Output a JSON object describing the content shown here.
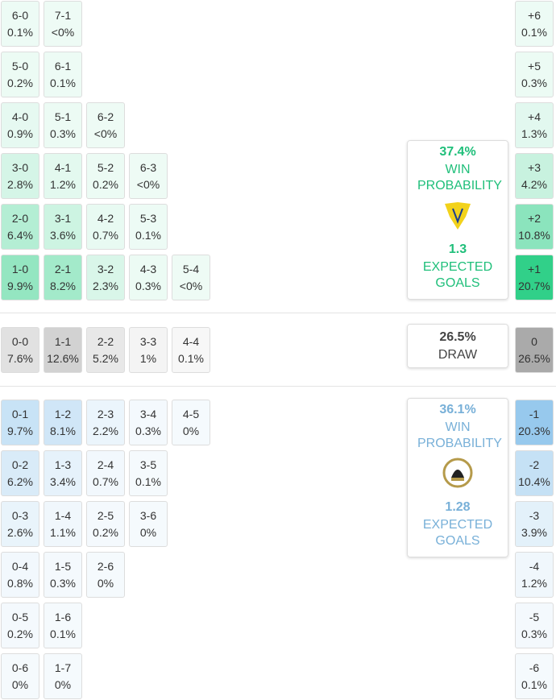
{
  "home": {
    "color": "#2ecf87",
    "text_color": "#1fbf7a",
    "rows": [
      [
        {
          "score": "6-0",
          "pct": "0.1%"
        },
        {
          "score": "7-1",
          "pct": "<0%"
        }
      ],
      [
        {
          "score": "5-0",
          "pct": "0.2%"
        },
        {
          "score": "6-1",
          "pct": "0.1%"
        }
      ],
      [
        {
          "score": "4-0",
          "pct": "0.9%"
        },
        {
          "score": "5-1",
          "pct": "0.3%"
        },
        {
          "score": "6-2",
          "pct": "<0%"
        }
      ],
      [
        {
          "score": "3-0",
          "pct": "2.8%"
        },
        {
          "score": "4-1",
          "pct": "1.2%"
        },
        {
          "score": "5-2",
          "pct": "0.2%"
        },
        {
          "score": "6-3",
          "pct": "<0%"
        }
      ],
      [
        {
          "score": "2-0",
          "pct": "6.4%"
        },
        {
          "score": "3-1",
          "pct": "3.6%"
        },
        {
          "score": "4-2",
          "pct": "0.7%"
        },
        {
          "score": "5-3",
          "pct": "0.1%"
        }
      ],
      [
        {
          "score": "1-0",
          "pct": "9.9%"
        },
        {
          "score": "2-1",
          "pct": "8.2%"
        },
        {
          "score": "3-2",
          "pct": "2.3%"
        },
        {
          "score": "4-3",
          "pct": "0.3%"
        },
        {
          "score": "5-4",
          "pct": "<0%"
        }
      ]
    ],
    "margins": [
      {
        "label": "+6",
        "pct": "0.1%"
      },
      {
        "label": "+5",
        "pct": "0.3%"
      },
      {
        "label": "+4",
        "pct": "1.3%"
      },
      {
        "label": "+3",
        "pct": "4.2%"
      },
      {
        "label": "+2",
        "pct": "10.8%"
      },
      {
        "label": "+1",
        "pct": "20.7%"
      }
    ],
    "summary": {
      "pct": "37.4%",
      "label": "WIN PROBABILITY",
      "xg": "1.3",
      "xg_label": "EXPECTED GOALS"
    }
  },
  "draw": {
    "color": "#9a9a9a",
    "text_color": "#444",
    "rows": [
      [
        {
          "score": "0-0",
          "pct": "7.6%"
        },
        {
          "score": "1-1",
          "pct": "12.6%"
        },
        {
          "score": "2-2",
          "pct": "5.2%"
        },
        {
          "score": "3-3",
          "pct": "1%"
        },
        {
          "score": "4-4",
          "pct": "0.1%"
        }
      ]
    ],
    "margins": [
      {
        "label": "0",
        "pct": "26.5%"
      }
    ],
    "summary": {
      "pct": "26.5%",
      "label": "DRAW"
    }
  },
  "away": {
    "color": "#86c0ea",
    "text_color": "#78b0d8",
    "rows": [
      [
        {
          "score": "0-1",
          "pct": "9.7%"
        },
        {
          "score": "1-2",
          "pct": "8.1%"
        },
        {
          "score": "2-3",
          "pct": "2.2%"
        },
        {
          "score": "3-4",
          "pct": "0.3%"
        },
        {
          "score": "4-5",
          "pct": "0%"
        }
      ],
      [
        {
          "score": "0-2",
          "pct": "6.2%"
        },
        {
          "score": "1-3",
          "pct": "3.4%"
        },
        {
          "score": "2-4",
          "pct": "0.7%"
        },
        {
          "score": "3-5",
          "pct": "0.1%"
        }
      ],
      [
        {
          "score": "0-3",
          "pct": "2.6%"
        },
        {
          "score": "1-4",
          "pct": "1.1%"
        },
        {
          "score": "2-5",
          "pct": "0.2%"
        },
        {
          "score": "3-6",
          "pct": "0%"
        }
      ],
      [
        {
          "score": "0-4",
          "pct": "0.8%"
        },
        {
          "score": "1-5",
          "pct": "0.3%"
        },
        {
          "score": "2-6",
          "pct": "0%"
        }
      ],
      [
        {
          "score": "0-5",
          "pct": "0.2%"
        },
        {
          "score": "1-6",
          "pct": "0.1%"
        }
      ],
      [
        {
          "score": "0-6",
          "pct": "0%"
        },
        {
          "score": "1-7",
          "pct": "0%"
        }
      ]
    ],
    "margins": [
      {
        "label": "-1",
        "pct": "20.3%"
      },
      {
        "label": "-2",
        "pct": "10.4%"
      },
      {
        "label": "-3",
        "pct": "3.9%"
      },
      {
        "label": "-4",
        "pct": "1.2%"
      },
      {
        "label": "-5",
        "pct": "0.3%"
      },
      {
        "label": "-6",
        "pct": "0.1%"
      }
    ],
    "summary": {
      "pct": "36.1%",
      "label": "WIN PROBABILITY",
      "xg": "1.28",
      "xg_label": "EXPECTED GOALS"
    }
  }
}
